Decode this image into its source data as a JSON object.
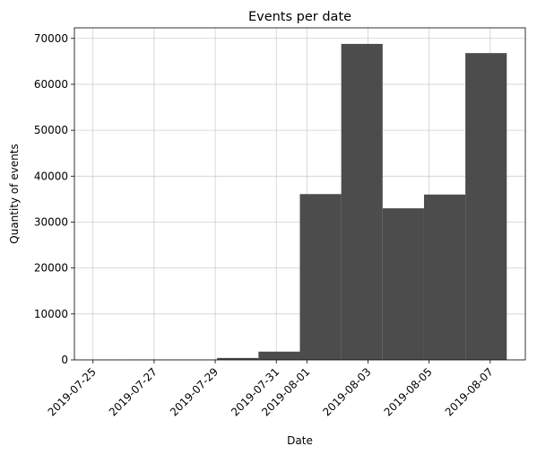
{
  "chart_data": {
    "type": "bar",
    "title": "Events per date",
    "xlabel": "Date",
    "ylabel": "Quantity of events",
    "bins": [
      {
        "start": "2019-07-25T00:00",
        "end": "2019-07-26T08:30",
        "value": 9
      },
      {
        "start": "2019-07-26T08:30",
        "end": "2019-07-27T17:00",
        "value": 31
      },
      {
        "start": "2019-07-27T17:00",
        "end": "2019-07-29T01:30",
        "value": 55
      },
      {
        "start": "2019-07-29T01:30",
        "end": "2019-07-30T10:00",
        "value": 413
      },
      {
        "start": "2019-07-30T10:00",
        "end": "2019-07-31T18:30",
        "value": 1796
      },
      {
        "start": "2019-07-31T18:30",
        "end": "2019-08-02T03:00",
        "value": 36100
      },
      {
        "start": "2019-08-02T03:00",
        "end": "2019-08-03T11:30",
        "value": 68800
      },
      {
        "start": "2019-08-03T11:30",
        "end": "2019-08-04T20:00",
        "value": 33000
      },
      {
        "start": "2019-08-04T20:00",
        "end": "2019-08-06T04:30",
        "value": 36000
      },
      {
        "start": "2019-08-06T04:30",
        "end": "2019-08-07T13:00",
        "value": 66800
      }
    ],
    "x_ticks": [
      "2019-07-25",
      "2019-07-27",
      "2019-07-29",
      "2019-07-31",
      "2019-08-01",
      "2019-08-03",
      "2019-08-05",
      "2019-08-07"
    ],
    "y_ticks": [
      0,
      10000,
      20000,
      30000,
      40000,
      50000,
      60000,
      70000
    ],
    "xlim": [
      "2019-07-24T09:24",
      "2019-08-08T03:36"
    ],
    "ylim": [
      0,
      72300
    ],
    "grid": true,
    "bar_color": "#4c4c4c",
    "x_tick_rotation": "45 degrees"
  }
}
